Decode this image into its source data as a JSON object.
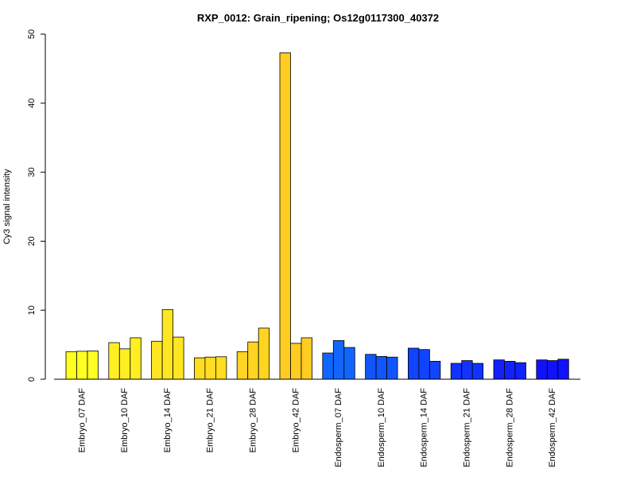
{
  "chart_data": {
    "type": "bar",
    "title": "RXP_0012: Grain_ripening; Os12g0117300_40372",
    "xlabel": "",
    "ylabel": "Cy3 signal intensity",
    "ylim": [
      0,
      50
    ],
    "yticks": [
      0,
      10,
      20,
      30,
      40,
      50
    ],
    "grid": false,
    "legend": "none",
    "categories": [
      "Embryo_07 DAF",
      "Embryo_10 DAF",
      "Embryo_14 DAF",
      "Embryo_21 DAF",
      "Embryo_28 DAF",
      "Embryo_42 DAF",
      "Endosperm_07 DAF",
      "Endosperm_10 DAF",
      "Endosperm_14 DAF",
      "Endosperm_21 DAF",
      "Endosperm_28 DAF",
      "Endosperm_42 DAF"
    ],
    "group_colors": [
      "#ffff22",
      "#ffee22",
      "#ffe622",
      "#ffdd22",
      "#ffd522",
      "#ffcc22",
      "#1166ff",
      "#1155ff",
      "#1144ff",
      "#1133ff",
      "#1122ff",
      "#1111ff"
    ],
    "replicates": [
      [
        4.0,
        4.05,
        4.1
      ],
      [
        5.3,
        4.4,
        6.0
      ],
      [
        5.5,
        10.1,
        6.1
      ],
      [
        3.1,
        3.2,
        3.25
      ],
      [
        4.0,
        5.4,
        7.4
      ],
      [
        47.3,
        5.2,
        6.0
      ],
      [
        3.8,
        5.6,
        4.6
      ],
      [
        3.6,
        3.3,
        3.2
      ],
      [
        4.5,
        4.3,
        2.6
      ],
      [
        2.3,
        2.7,
        2.3
      ],
      [
        2.8,
        2.6,
        2.4
      ],
      [
        2.8,
        2.7,
        2.9
      ]
    ]
  }
}
